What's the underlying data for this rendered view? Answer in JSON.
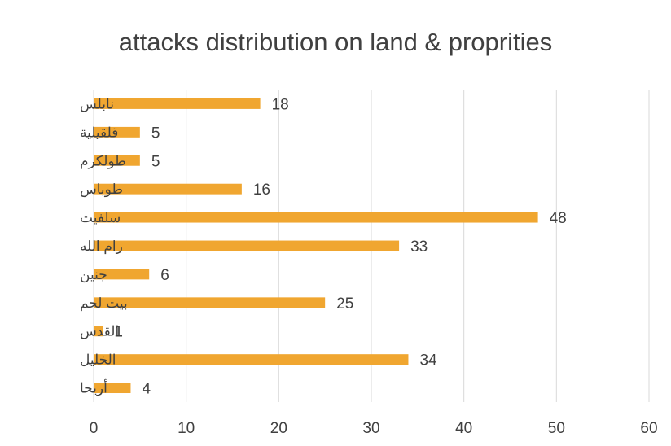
{
  "chart_data": {
    "type": "bar",
    "orientation": "horizontal",
    "title": "attacks distribution on land & proprities",
    "categories": [
      "نابلس",
      "قلقيلية",
      "طولكرم",
      "طوباس",
      "سلفيت",
      "رام الله",
      "جنين",
      "بيت لحم",
      "القدس",
      "الخليل",
      "أريحا"
    ],
    "values": [
      18,
      5,
      5,
      16,
      48,
      33,
      6,
      25,
      1,
      34,
      4
    ],
    "xlim": [
      0,
      60
    ],
    "xticks": [
      0,
      10,
      20,
      30,
      40,
      50,
      60
    ],
    "data_labels": true,
    "grid": "vertical",
    "legend": "none",
    "colors": {
      "bar": "#f0a630",
      "grid": "#d9d9d9",
      "text": "#404040",
      "background": "#ffffff"
    }
  }
}
